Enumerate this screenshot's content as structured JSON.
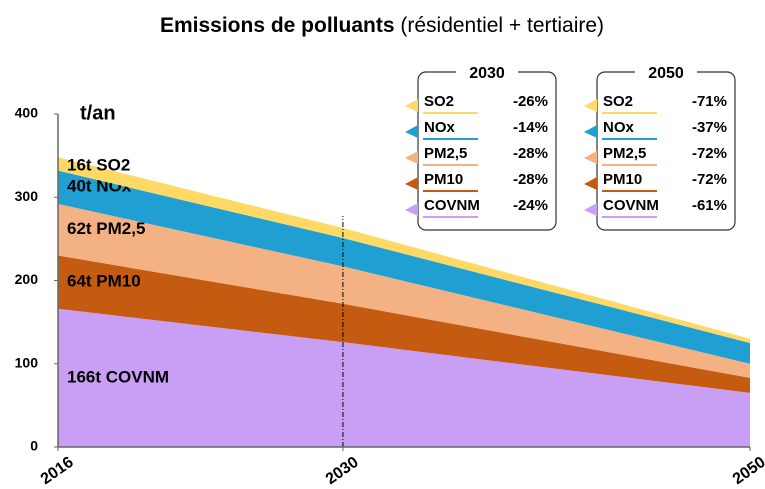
{
  "chart_data": {
    "type": "stacked_area",
    "title": "Emissions de polluants",
    "subtitle": "(résidentiel + tertiaire)",
    "y_label": "t/an",
    "x": [
      2016,
      2030,
      2050
    ],
    "xlim": [
      2016,
      2050
    ],
    "xticks": [
      2016,
      2030,
      2050
    ],
    "ylim": [
      0,
      400
    ],
    "yticks": [
      0,
      100,
      200,
      300,
      400
    ],
    "series": [
      {
        "name": "COVNM",
        "color": "#c99ff5",
        "values": [
          166,
          126,
          65
        ],
        "label": "166t  COVNM"
      },
      {
        "name": "PM10",
        "color": "#c55a11",
        "values": [
          64,
          46,
          18
        ],
        "label": "64t  PM10"
      },
      {
        "name": "PM2,5",
        "color": "#f4b183",
        "values": [
          62,
          45,
          17
        ],
        "label": "62t  PM2,5"
      },
      {
        "name": "NOx",
        "color": "#1f9fd2",
        "values": [
          40,
          34,
          25
        ],
        "label": "40t  NOx"
      },
      {
        "name": "SO2",
        "color": "#ffd966",
        "values": [
          16,
          12,
          5
        ],
        "label": "16t  SO2"
      }
    ],
    "legend_boxes": [
      {
        "title": "2030",
        "changes": [
          "-26%",
          "-14%",
          "-28%",
          "-28%",
          "-24%"
        ]
      },
      {
        "title": "2050",
        "changes": [
          "-71%",
          "-37%",
          "-72%",
          "-72%",
          "-61%"
        ]
      }
    ]
  }
}
